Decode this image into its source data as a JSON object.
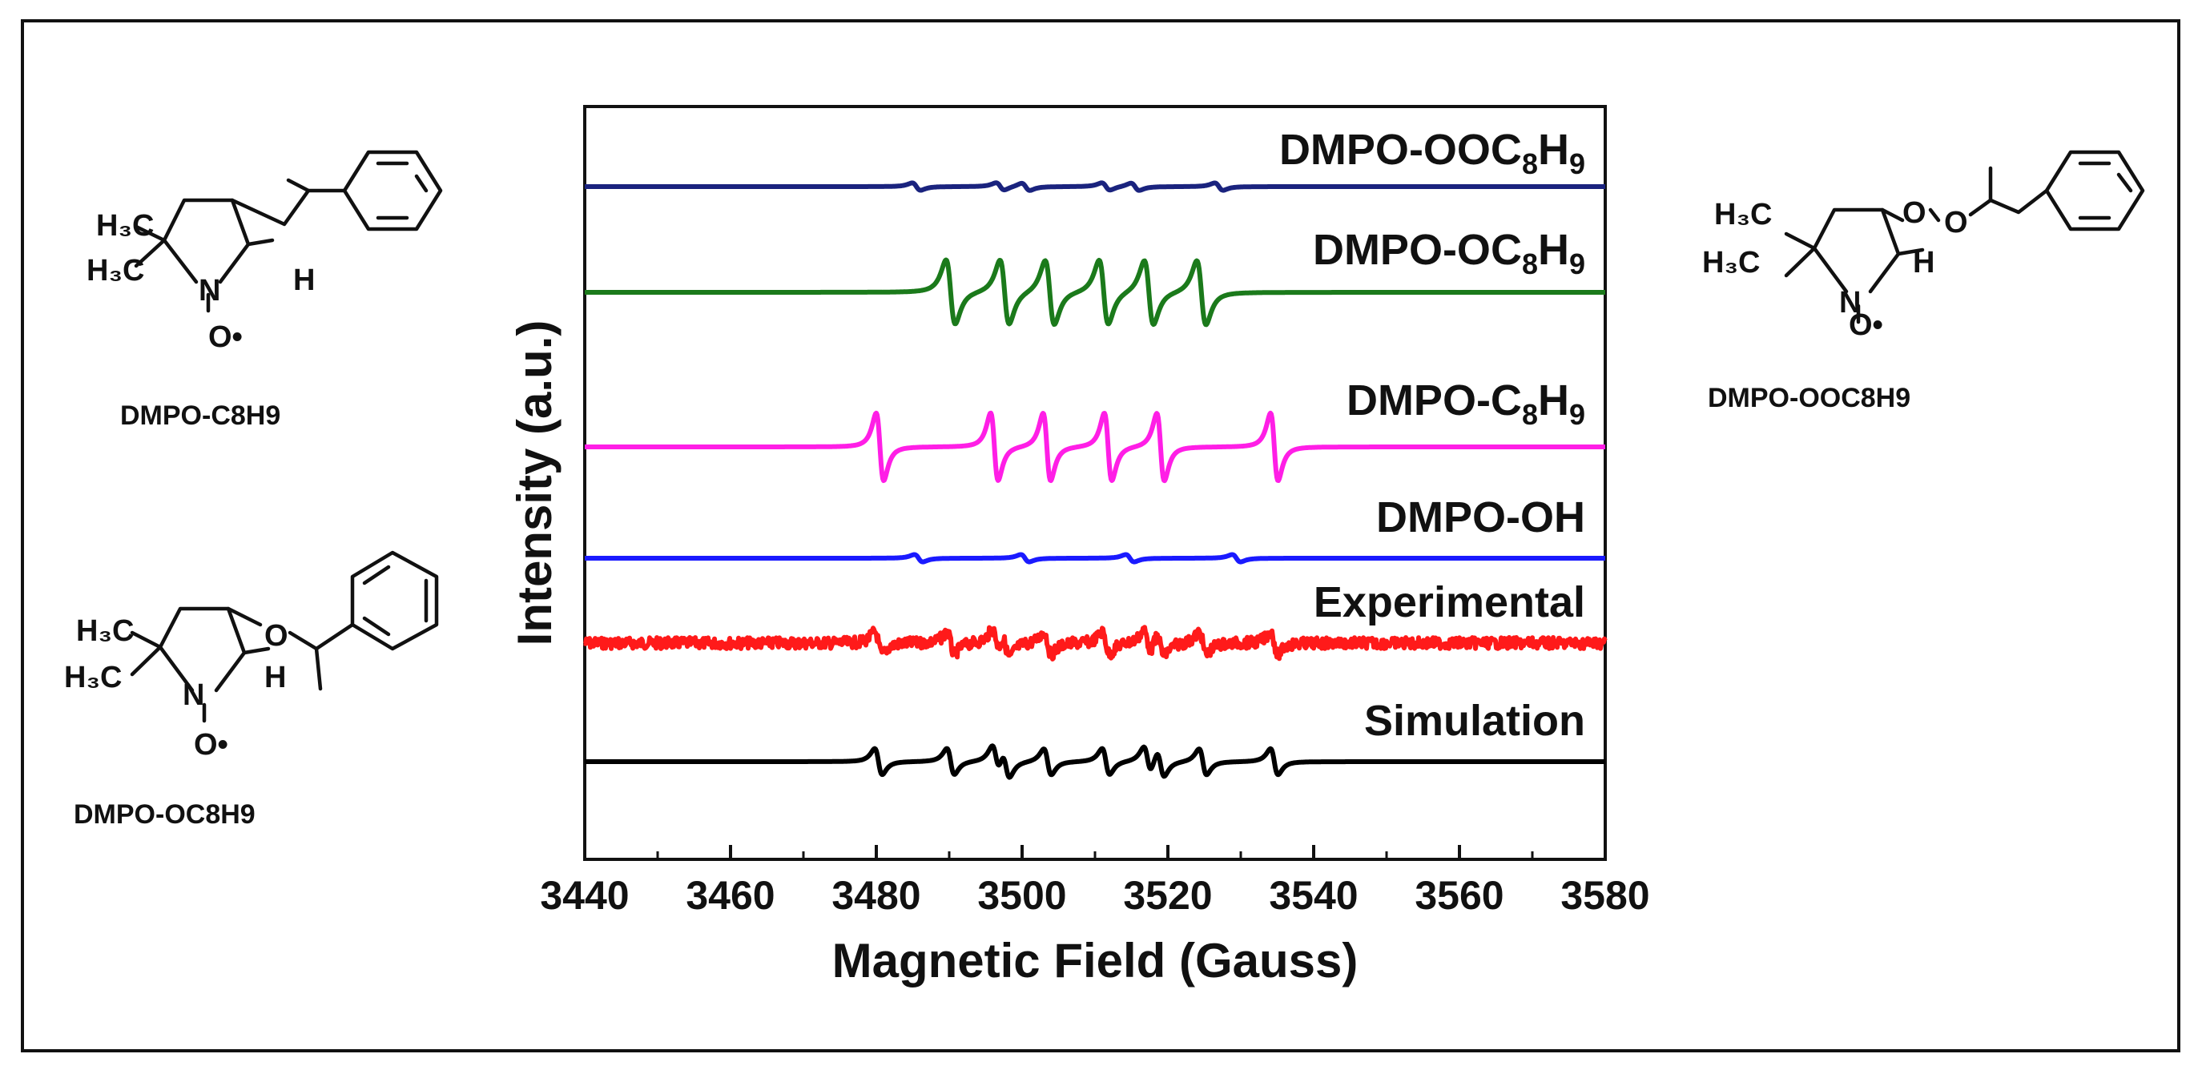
{
  "chart_data": {
    "type": "line",
    "title": "",
    "xlabel": "Magnetic Field (Gauss)",
    "ylabel": "Intensity (a.u.)",
    "xlim": [
      3440,
      3580
    ],
    "x_ticks": [
      3440,
      3460,
      3480,
      3500,
      3520,
      3540,
      3560,
      3580
    ],
    "y_ticks": "none",
    "grid": false,
    "legend": "labels above each trace, right-aligned",
    "series": [
      {
        "name": "DMPO-OOC8H9",
        "label_main": "DMPO-OOC",
        "label_sub1": "8",
        "label_mid": "H",
        "label_sub2": "9",
        "color": "#1a237e",
        "line_center": [
          3485.5,
          3497,
          3500.5,
          3511.5,
          3515.5,
          3527
        ],
        "amplitude": 0.18
      },
      {
        "name": "DMPO-OC8H9",
        "label_main": "DMPO-OC",
        "label_sub1": "8",
        "label_mid": "H",
        "label_sub2": "9",
        "color": "#1b7a1b",
        "line_center": [
          3490.2,
          3497.6,
          3503.8,
          3511.2,
          3517.4,
          3524.6
        ],
        "amplitude": 0.95
      },
      {
        "name": "DMPO-C8H9",
        "label_main": "DMPO-C",
        "label_sub1": "8",
        "label_mid": "H",
        "label_sub2": "9",
        "color": "#ff1ee6",
        "line_center": [
          3480.5,
          3496.2,
          3503.4,
          3511.8,
          3519,
          3534.6
        ],
        "amplitude": 1.0
      },
      {
        "name": "DMPO-OH",
        "label_main": "DMPO-OH",
        "color": "#1a1aff",
        "line_center": [
          3485.8,
          3500.4,
          3514.8,
          3529.4
        ],
        "amplitude": 0.18
      },
      {
        "name": "Experimental",
        "label_main": "Experimental",
        "color": "#ff1a1a",
        "line_center": [
          3480.3,
          3490.2,
          3496.4,
          3497.8,
          3503.5,
          3511.5,
          3517.2,
          3519,
          3524.8,
          3534.6
        ],
        "amplitude": 0.55
      },
      {
        "name": "Simulation",
        "label_main": "Simulation",
        "color": "#000000",
        "line_center": [
          3480.3,
          3490.2,
          3496.4,
          3497.8,
          3503.5,
          3511.5,
          3517.2,
          3519,
          3524.8,
          3534.6
        ],
        "amplitude": 0.55
      }
    ]
  },
  "molecules": {
    "c8h9": {
      "name": "DMPO-C8H9",
      "me1": "H₃C",
      "me2": "H₃C",
      "n": "N",
      "o": "O•",
      "h": "H"
    },
    "oc8h9": {
      "name": "DMPO-OC8H9",
      "me1": "H₃C",
      "me2": "H₃C",
      "n": "N",
      "o": "O•",
      "h": "H",
      "link_o": "O"
    },
    "ooc8h9": {
      "name": "DMPO-OOC8H9",
      "me1": "H₃C",
      "me2": "H₃C",
      "n": "N",
      "o": "O•",
      "h": "H",
      "link_o1": "O",
      "link_o2": "O"
    }
  }
}
